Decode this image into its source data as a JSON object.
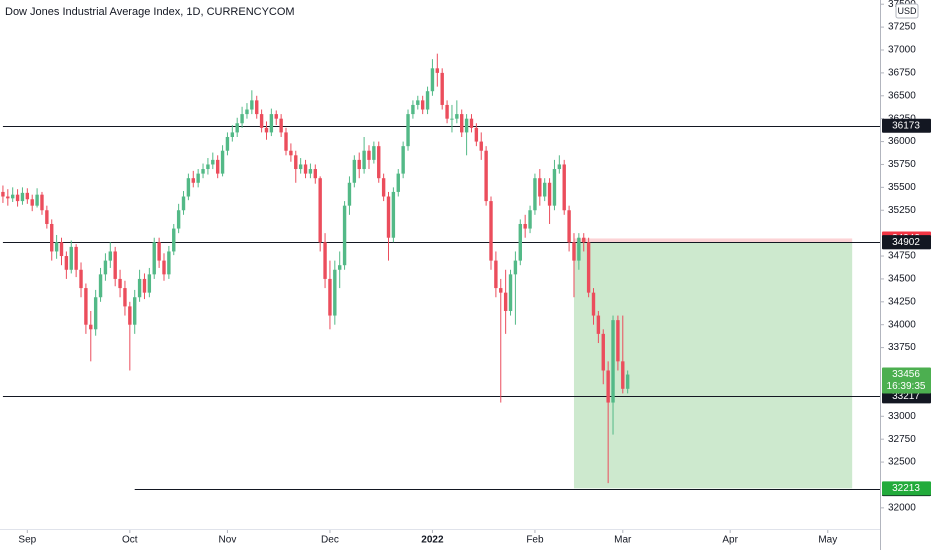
{
  "chart_data": {
    "type": "candlestick",
    "title": "Dow Jones Industrial Average Index, 1D, CURRENCYCOM",
    "currency": "USD",
    "up_color": "#53b987",
    "down_color": "#eb4d5c",
    "ylim": [
      31780,
      37546
    ],
    "yticks": [
      32000,
      32500,
      32750,
      33000,
      33750,
      34000,
      34250,
      34500,
      34750,
      35250,
      35500,
      35750,
      36000,
      36250,
      36500,
      36750,
      37000,
      37250,
      37500
    ],
    "xlim": [
      -0.6,
      179.7
    ],
    "xticks": [
      {
        "value": 5,
        "label": "Sep"
      },
      {
        "value": 26,
        "label": "Oct"
      },
      {
        "value": 46,
        "label": "Nov"
      },
      {
        "value": 67,
        "label": "Dec"
      },
      {
        "value": 88,
        "label": "2022"
      },
      {
        "value": 109,
        "label": "Feb"
      },
      {
        "value": 127,
        "label": "Mar"
      },
      {
        "value": 149,
        "label": "Apr"
      },
      {
        "value": 169,
        "label": "May"
      }
    ],
    "candles": [
      [
        35450,
        35520,
        35330,
        35400
      ],
      [
        35400,
        35480,
        35300,
        35380
      ],
      [
        35380,
        35500,
        35340,
        35420
      ],
      [
        35420,
        35480,
        35290,
        35350
      ],
      [
        35350,
        35500,
        35310,
        35440
      ],
      [
        35440,
        35490,
        35320,
        35370
      ],
      [
        35370,
        35420,
        35240,
        35300
      ],
      [
        35300,
        35490,
        35280,
        35420
      ],
      [
        35420,
        35450,
        35200,
        35250
      ],
      [
        35250,
        35300,
        35050,
        35100
      ],
      [
        35100,
        35150,
        34700,
        34800
      ],
      [
        34800,
        34980,
        34720,
        34900
      ],
      [
        34900,
        34950,
        34650,
        34750
      ],
      [
        34750,
        34800,
        34500,
        34600
      ],
      [
        34600,
        34920,
        34560,
        34850
      ],
      [
        34850,
        34880,
        34520,
        34600
      ],
      [
        34600,
        34680,
        34300,
        34400
      ],
      [
        34400,
        34450,
        33900,
        34000
      ],
      [
        34000,
        34150,
        33600,
        33950
      ],
      [
        33950,
        34380,
        33880,
        34300
      ],
      [
        34300,
        34620,
        34250,
        34550
      ],
      [
        34550,
        34780,
        34480,
        34700
      ],
      [
        34700,
        34900,
        34620,
        34800
      ],
      [
        34800,
        34850,
        34420,
        34500
      ],
      [
        34500,
        34600,
        34300,
        34400
      ],
      [
        34400,
        34480,
        34100,
        34200
      ],
      [
        34200,
        34250,
        33500,
        34000
      ],
      [
        34000,
        34380,
        33900,
        34300
      ],
      [
        34300,
        34600,
        34250,
        34500
      ],
      [
        34500,
        34560,
        34280,
        34350
      ],
      [
        34350,
        34620,
        34300,
        34550
      ],
      [
        34550,
        34950,
        34500,
        34900
      ],
      [
        34900,
        34950,
        34620,
        34700
      ],
      [
        34700,
        34780,
        34480,
        34550
      ],
      [
        34550,
        34860,
        34500,
        34800
      ],
      [
        34800,
        35100,
        34760,
        35050
      ],
      [
        35050,
        35320,
        35000,
        35250
      ],
      [
        35250,
        35460,
        35200,
        35400
      ],
      [
        35400,
        35650,
        35360,
        35600
      ],
      [
        35600,
        35680,
        35500,
        35550
      ],
      [
        35550,
        35700,
        35500,
        35650
      ],
      [
        35650,
        35760,
        35600,
        35700
      ],
      [
        35700,
        35820,
        35640,
        35750
      ],
      [
        35750,
        35880,
        35700,
        35800
      ],
      [
        35800,
        35850,
        35600,
        35650
      ],
      [
        35650,
        35960,
        35620,
        35900
      ],
      [
        35900,
        36100,
        35850,
        36050
      ],
      [
        36050,
        36180,
        36000,
        36100
      ],
      [
        36100,
        36260,
        36050,
        36200
      ],
      [
        36200,
        36380,
        36150,
        36300
      ],
      [
        36300,
        36420,
        36250,
        36350
      ],
      [
        36350,
        36560,
        36300,
        36450
      ],
      [
        36450,
        36500,
        36250,
        36300
      ],
      [
        36300,
        36350,
        36100,
        36150
      ],
      [
        36150,
        36220,
        36020,
        36100
      ],
      [
        36100,
        36360,
        36060,
        36300
      ],
      [
        36300,
        36340,
        36180,
        36250
      ],
      [
        36250,
        36300,
        36050,
        36100
      ],
      [
        36100,
        36150,
        35850,
        35900
      ],
      [
        35900,
        35980,
        35780,
        35850
      ],
      [
        35850,
        35900,
        35550,
        35700
      ],
      [
        35700,
        35820,
        35650,
        35750
      ],
      [
        35750,
        35800,
        35600,
        35650
      ],
      [
        35650,
        35760,
        35600,
        35700
      ],
      [
        35700,
        35750,
        35540,
        35600
      ],
      [
        35600,
        35620,
        34800,
        34900
      ],
      [
        34900,
        35000,
        34400,
        34500
      ],
      [
        34500,
        34700,
        33950,
        34100
      ],
      [
        34100,
        34700,
        34000,
        34600
      ],
      [
        34600,
        34800,
        34400,
        34650
      ],
      [
        34650,
        35350,
        34600,
        35300
      ],
      [
        35300,
        35620,
        35200,
        35550
      ],
      [
        35550,
        35850,
        35500,
        35800
      ],
      [
        35800,
        35880,
        35600,
        35700
      ],
      [
        35700,
        36050,
        35650,
        35900
      ],
      [
        35900,
        35960,
        35700,
        35800
      ],
      [
        35800,
        36000,
        35760,
        35950
      ],
      [
        35950,
        36000,
        35550,
        35600
      ],
      [
        35600,
        35650,
        35350,
        35400
      ],
      [
        35400,
        35450,
        34700,
        34950
      ],
      [
        34950,
        35500,
        34900,
        35450
      ],
      [
        35450,
        35700,
        35400,
        35650
      ],
      [
        35650,
        36000,
        35600,
        35950
      ],
      [
        35950,
        36350,
        35900,
        36300
      ],
      [
        36300,
        36450,
        36250,
        36400
      ],
      [
        36400,
        36500,
        36350,
        36450
      ],
      [
        36450,
        36500,
        36300,
        36350
      ],
      [
        36350,
        36600,
        36300,
        36550
      ],
      [
        36550,
        36900,
        36500,
        36800
      ],
      [
        36800,
        36960,
        36600,
        36750
      ],
      [
        36750,
        36800,
        36350,
        36400
      ],
      [
        36400,
        36450,
        36200,
        36250
      ],
      [
        36250,
        36400,
        36100,
        36250
      ],
      [
        36250,
        36450,
        36200,
        36300
      ],
      [
        36300,
        36350,
        36050,
        36100
      ],
      [
        36100,
        36300,
        35850,
        36250
      ],
      [
        36250,
        36300,
        36100,
        36150
      ],
      [
        36150,
        36200,
        35950,
        36000
      ],
      [
        36000,
        36100,
        35800,
        35900
      ],
      [
        35900,
        35950,
        35300,
        35350
      ],
      [
        35350,
        35400,
        34600,
        34700
      ],
      [
        34700,
        34800,
        34300,
        34400
      ],
      [
        34400,
        34500,
        33150,
        34350
      ],
      [
        34350,
        34600,
        33900,
        34150
      ],
      [
        34150,
        34600,
        34100,
        34550
      ],
      [
        34550,
        34800,
        34000,
        34700
      ],
      [
        34700,
        35150,
        34650,
        35100
      ],
      [
        35100,
        35200,
        34950,
        35050
      ],
      [
        35050,
        35300,
        35000,
        35250
      ],
      [
        35250,
        35650,
        35200,
        35600
      ],
      [
        35600,
        35700,
        35300,
        35400
      ],
      [
        35400,
        35600,
        35350,
        35550
      ],
      [
        35550,
        35600,
        35100,
        35300
      ],
      [
        35300,
        35800,
        35250,
        35700
      ],
      [
        35700,
        35850,
        35650,
        35750
      ],
      [
        35750,
        35800,
        35200,
        35250
      ],
      [
        35250,
        35300,
        34800,
        34900
      ],
      [
        34900,
        35000,
        34300,
        34700
      ],
      [
        34700,
        35000,
        34600,
        34950
      ],
      [
        34950,
        35000,
        34800,
        34900
      ],
      [
        34900,
        34950,
        34300,
        34350
      ],
      [
        34350,
        34400,
        34000,
        34100
      ],
      [
        34100,
        34150,
        33800,
        33900
      ],
      [
        33900,
        33950,
        33350,
        33500
      ],
      [
        33500,
        33600,
        32270,
        33150
      ],
      [
        33150,
        34100,
        32800,
        34050
      ],
      [
        34050,
        34100,
        33500,
        33600
      ],
      [
        33600,
        34100,
        33250,
        33300
      ],
      [
        33300,
        33500,
        33250,
        33456
      ]
    ],
    "levels": [
      {
        "value": 36173,
        "from": 0,
        "label_color": "#131722"
      },
      {
        "value": 34899,
        "from": 0,
        "label_color": "#5d606b"
      },
      {
        "value": 33217,
        "from": 0,
        "label_color": "#131722"
      },
      {
        "value": 32204,
        "from": 27,
        "label_color": "#131722"
      }
    ],
    "position": {
      "stop": 34942,
      "entry": 34902,
      "target": 32213,
      "x_start": 117,
      "x_end": 174,
      "stop_color": "#f23645",
      "entry_color": "#131722",
      "target_color": "#22ab3b"
    },
    "last_price": {
      "value": 33456,
      "countdown": "16:39:35",
      "color": "#4caf50"
    }
  }
}
